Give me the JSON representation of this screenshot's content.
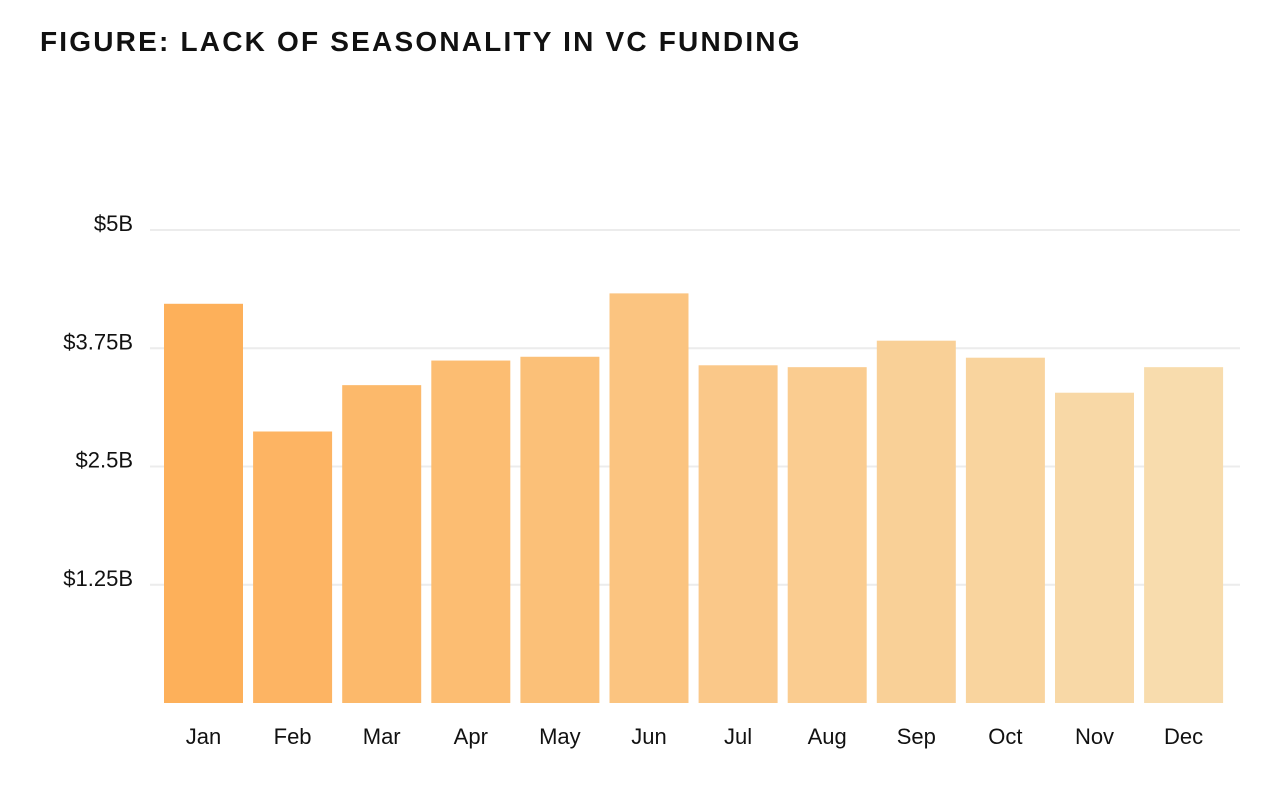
{
  "title": "FIGURE: LACK OF SEASONALITY IN VC FUNDING",
  "chart_data": {
    "type": "bar",
    "title": "FIGURE: LACK OF SEASONALITY IN VC FUNDING",
    "xlabel": "",
    "ylabel": "",
    "categories": [
      "Jan",
      "Feb",
      "Mar",
      "Apr",
      "May",
      "Jun",
      "Jul",
      "Aug",
      "Sep",
      "Oct",
      "Nov",
      "Dec"
    ],
    "values": [
      4.22,
      2.87,
      3.36,
      3.62,
      3.66,
      4.33,
      3.57,
      3.55,
      3.83,
      3.65,
      3.28,
      3.55
    ],
    "unit": "$B",
    "ylim": [
      0,
      5
    ],
    "yticks": [
      {
        "value": 1.25,
        "label": "$1.25B"
      },
      {
        "value": 2.5,
        "label": "$2.5B"
      },
      {
        "value": 3.75,
        "label": "$3.75B"
      },
      {
        "value": 5,
        "label": "$5B"
      }
    ],
    "grid": true,
    "legend": "none",
    "bar_colors": [
      "#fdb05a",
      "#fdb463",
      "#fcb96b",
      "#fcbd72",
      "#fbc078",
      "#fbc480",
      "#fac889",
      "#facc90",
      "#f9d097",
      "#f9d49e",
      "#f8d8a6",
      "#f8dcad"
    ],
    "grid_color": "#ececec"
  }
}
